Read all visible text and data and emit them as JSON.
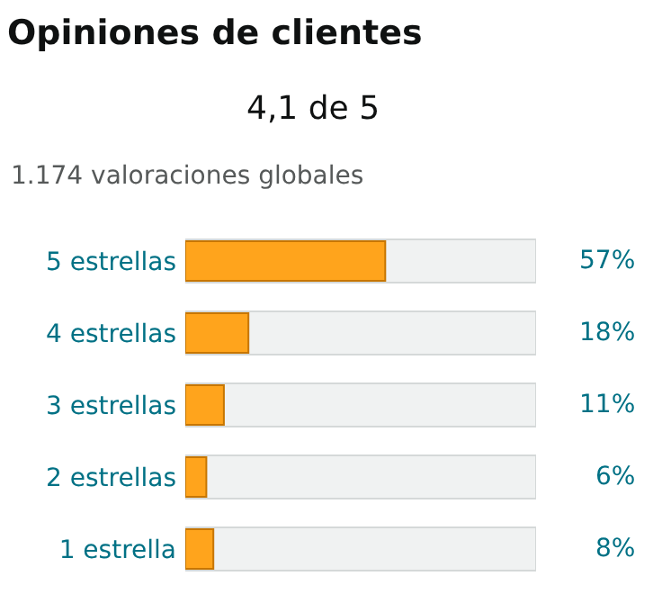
{
  "chart_data": {
    "type": "bar",
    "orientation": "horizontal",
    "title": "Opiniones de clientes",
    "subtitle": "4,1 de 5",
    "annotations": [
      "1.174 valoraciones globales"
    ],
    "categories": [
      "5 estrellas",
      "4 estrellas",
      "3 estrellas",
      "2 estrellas",
      "1 estrella"
    ],
    "values": [
      57,
      18,
      11,
      6,
      8
    ],
    "color": "#ffa41c",
    "value_labels": [
      "57%",
      "18%",
      "11%",
      "6%",
      "8%"
    ],
    "xlim": [
      0,
      100
    ],
    "tick_labels": "y",
    "legend": false
  }
}
